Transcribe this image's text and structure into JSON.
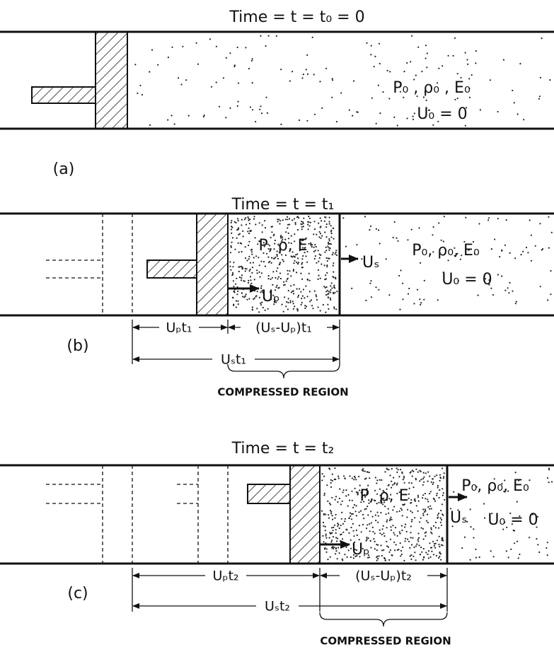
{
  "panels": [
    {
      "title": "Time = t = t₀ = 0",
      "label": "(a)",
      "state_ahead": "P₀ , ρ₀ , E₀",
      "velocity_ahead": "U₀ = 0"
    },
    {
      "title": "Time = t = t₁",
      "label": "(b)",
      "state_compressed": "P, ρ, E",
      "shock_velocity": "Uₛ",
      "piston_velocity": "Uₚ",
      "state_ahead": "P₀, ρ₀, E₀",
      "velocity_ahead": "U₀ = 0",
      "dim_piston": "Uₚt₁",
      "dim_compressed": "(Uₛ-Uₚ)t₁",
      "dim_shock": "Uₛt₁",
      "region": "COMPRESSED REGION"
    },
    {
      "title": "Time = t = t₂",
      "label": "(c)",
      "state_compressed": "P, ρ, E",
      "shock_velocity": "Uₛ",
      "piston_velocity": "Uₚ",
      "state_ahead": "P₀, ρ₀, E₀",
      "velocity_ahead": "U₀ = 0",
      "dim_piston": "Uₚt₂",
      "dim_compressed": "(Uₛ-Uₚ)t₂",
      "dim_shock": "Uₛt₂",
      "region": "COMPRESSED REGION"
    }
  ]
}
